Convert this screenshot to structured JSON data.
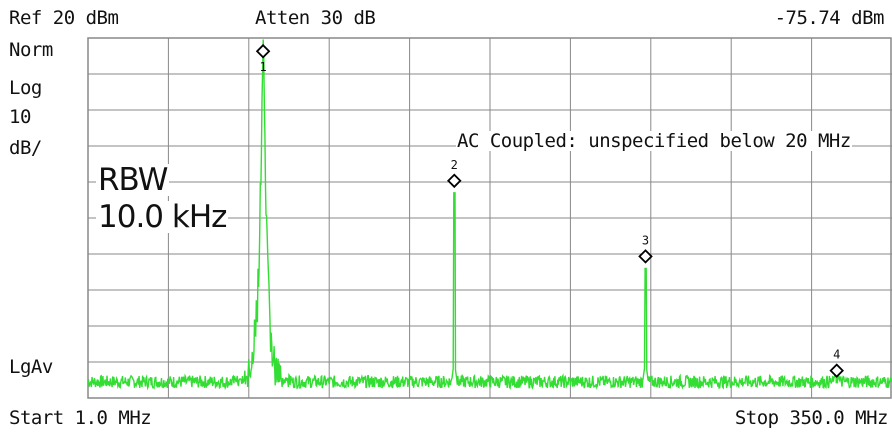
{
  "header": {
    "ref_level": "Ref 20 dBm",
    "attenuation": "Atten 30 dB",
    "marker_readout": "-75.74 dBm"
  },
  "scale": {
    "line1": "Norm",
    "line2": "Log",
    "line3": "10",
    "line4": "dB/"
  },
  "averaging": "LgAv",
  "rbw": {
    "label": "RBW",
    "value": "10.0 kHz"
  },
  "annotation": "AC Coupled: unspecified below 20 MHz",
  "footer": {
    "start": "Start 1.0 MHz",
    "stop": "Stop 350.0 MHz"
  },
  "colors": {
    "trace": "#33dd33",
    "grid": "#888888",
    "background": "#ffffff",
    "text": "#111111"
  },
  "chart_data": {
    "type": "line",
    "xlabel": "",
    "ylabel": "",
    "x_unit": "MHz",
    "y_unit": "dBm",
    "xlim": [
      1.0,
      350.0
    ],
    "ylim": [
      -80,
      20
    ],
    "grid": true,
    "noise_floor_dbm": -75.5,
    "series": [
      {
        "values_description_free": true,
        "peaks": [
          {
            "marker": "1",
            "x": 77.0,
            "y": 13.0
          },
          {
            "marker": "2",
            "x": 160.0,
            "y": -23.0
          },
          {
            "marker": "3",
            "x": 243.0,
            "y": -44.0
          },
          {
            "marker": "4",
            "x": 326.0,
            "y": -75.74
          }
        ]
      }
    ]
  }
}
